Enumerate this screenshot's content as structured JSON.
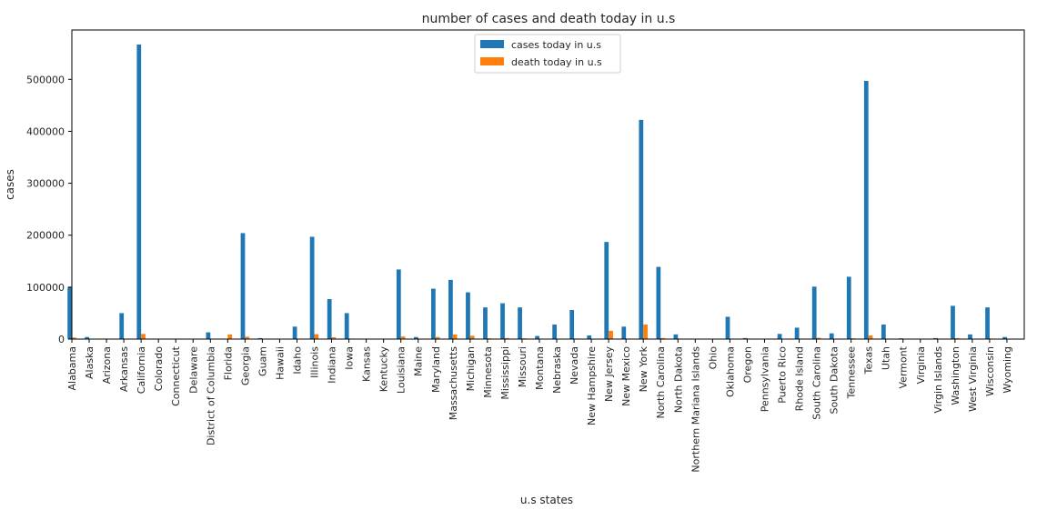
{
  "chart_data": {
    "type": "bar",
    "title": "number of cases and death today in u.s",
    "xlabel": "u.s states",
    "ylabel": "cases",
    "ylim": [
      0,
      595000
    ],
    "yticks": [
      0,
      100000,
      200000,
      300000,
      400000,
      500000
    ],
    "grid": false,
    "legend_position": "top-center",
    "categories": [
      "Alabama",
      "Alaska",
      "Arizona",
      "Arkansas",
      "California",
      "Colorado",
      "Connecticut",
      "Delaware",
      "District of Columbia",
      "Florida",
      "Georgia",
      "Guam",
      "Hawaii",
      "Idaho",
      "Illinois",
      "Indiana",
      "Iowa",
      "Kansas",
      "Kentucky",
      "Louisiana",
      "Maine",
      "Maryland",
      "Massachusetts",
      "Michigan",
      "Minnesota",
      "Mississippi",
      "Missouri",
      "Montana",
      "Nebraska",
      "Nevada",
      "New Hampshire",
      "New Jersey",
      "New Mexico",
      "New York",
      "North Carolina",
      "North Dakota",
      "Northern Mariana Islands",
      "Ohio",
      "Oklahoma",
      "Oregon",
      "Pennsylvania",
      "Puerto Rico",
      "Rhode Island",
      "South Carolina",
      "South Dakota",
      "Tennessee",
      "Texas",
      "Utah",
      "Vermont",
      "Virginia",
      "Virgin Islands",
      "Washington",
      "West Virginia",
      "Wisconsin",
      "Wyoming"
    ],
    "series": [
      {
        "name": "cases today in u.s",
        "color": "#1f77b4",
        "values": [
          100000,
          4000,
          0,
          50000,
          567000,
          0,
          0,
          0,
          13000,
          0,
          204000,
          2000,
          0,
          24000,
          197000,
          77000,
          50000,
          0,
          0,
          134000,
          4000,
          97000,
          114000,
          90000,
          61000,
          69000,
          61000,
          6000,
          28000,
          56000,
          7000,
          187000,
          24000,
          422000,
          139000,
          9000,
          0,
          0,
          43000,
          2000,
          0,
          10000,
          22000,
          101000,
          11000,
          120000,
          497000,
          28000,
          1500,
          0,
          2000,
          64000,
          9000,
          61000,
          4000
        ]
      },
      {
        "name": "death today in u.s",
        "color": "#ff7f0e",
        "values": [
          3000,
          100,
          0,
          500,
          10000,
          0,
          0,
          0,
          600,
          9000,
          4500,
          50,
          0,
          300,
          9500,
          3500,
          1000,
          0,
          0,
          5000,
          100,
          4000,
          9000,
          6500,
          1500,
          2000,
          1500,
          100,
          300,
          1000,
          500,
          16000,
          1000,
          28000,
          2000,
          200,
          0,
          0,
          500,
          50,
          0,
          200,
          1000,
          2500,
          150,
          1500,
          7000,
          200,
          50,
          0,
          20,
          1800,
          200,
          1000,
          50
        ]
      }
    ]
  }
}
